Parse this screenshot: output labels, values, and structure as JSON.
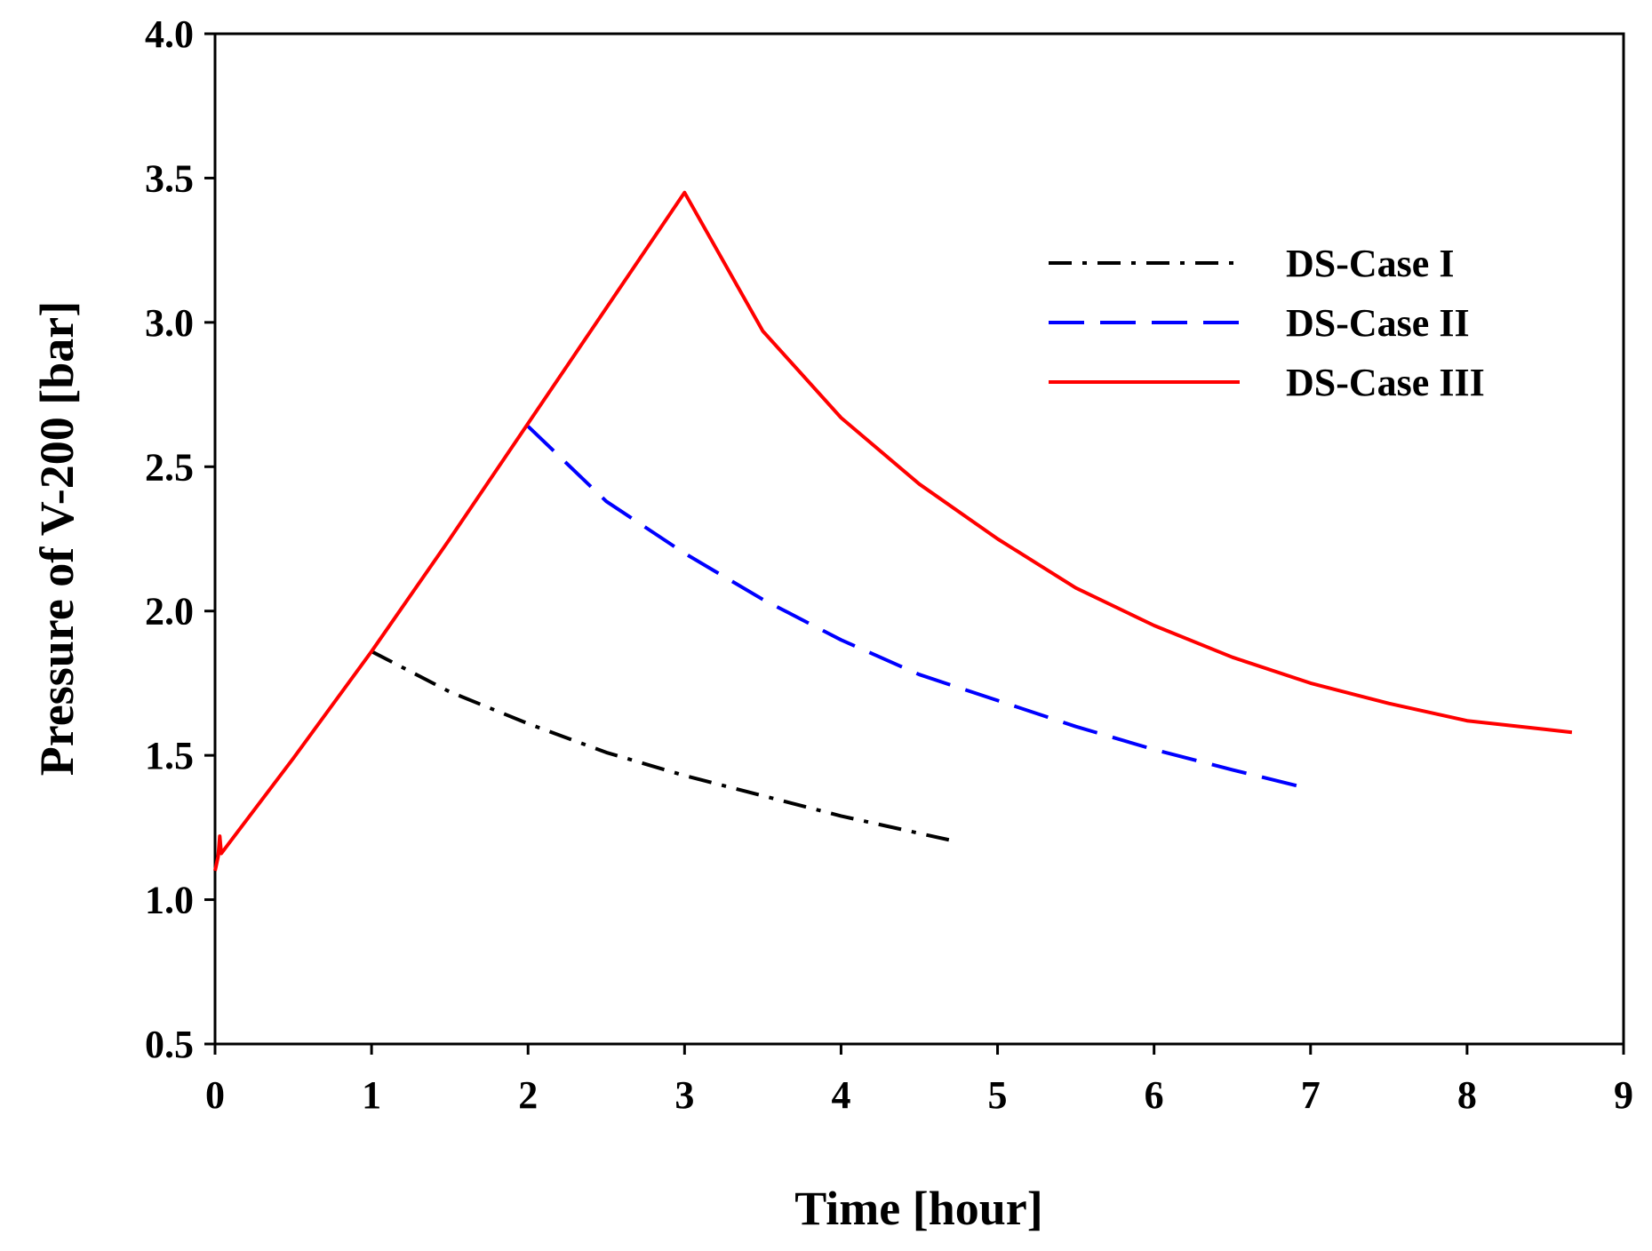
{
  "chart_data": {
    "type": "line",
    "title": "",
    "xlabel": "Time [hour]",
    "ylabel": "Pressure of V-200 [bar]",
    "xlim": [
      0,
      9
    ],
    "ylim": [
      0.5,
      4.0
    ],
    "xticks": [
      0,
      1,
      2,
      3,
      4,
      5,
      6,
      7,
      8,
      9
    ],
    "yticks": [
      0.5,
      1.0,
      1.5,
      2.0,
      2.5,
      3.0,
      3.5,
      4.0
    ],
    "xtick_labels": [
      "0",
      "1",
      "2",
      "3",
      "4",
      "5",
      "6",
      "7",
      "8",
      "9"
    ],
    "ytick_labels": [
      "0.5",
      "1.0",
      "1.5",
      "2.0",
      "2.5",
      "3.0",
      "3.5",
      "4.0"
    ],
    "grid": false,
    "legend_position": "top-right",
    "series": [
      {
        "name": "DS-Case I",
        "color": "#000000",
        "style": "dash-dot",
        "points": [
          [
            1.0,
            1.86
          ],
          [
            1.5,
            1.72
          ],
          [
            2.0,
            1.61
          ],
          [
            2.5,
            1.51
          ],
          [
            3.0,
            1.43
          ],
          [
            3.5,
            1.36
          ],
          [
            4.0,
            1.29
          ],
          [
            4.5,
            1.23
          ],
          [
            4.75,
            1.2
          ]
        ]
      },
      {
        "name": "DS-Case II",
        "color": "#0000ff",
        "style": "dashed",
        "points": [
          [
            2.0,
            2.64
          ],
          [
            2.5,
            2.38
          ],
          [
            3.0,
            2.2
          ],
          [
            3.5,
            2.04
          ],
          [
            4.0,
            1.9
          ],
          [
            4.5,
            1.78
          ],
          [
            5.0,
            1.69
          ],
          [
            5.5,
            1.6
          ],
          [
            6.0,
            1.52
          ],
          [
            6.5,
            1.45
          ],
          [
            6.95,
            1.39
          ]
        ]
      },
      {
        "name": "DS-Case III",
        "color": "#ff0000",
        "style": "solid",
        "points": [
          [
            0.0,
            1.1
          ],
          [
            0.02,
            1.15
          ],
          [
            0.03,
            1.22
          ],
          [
            0.04,
            1.16
          ],
          [
            0.5,
            1.49
          ],
          [
            1.0,
            1.86
          ],
          [
            1.5,
            2.25
          ],
          [
            2.0,
            2.65
          ],
          [
            2.5,
            3.05
          ],
          [
            3.0,
            3.45
          ],
          [
            3.5,
            2.97
          ],
          [
            4.0,
            2.67
          ],
          [
            4.5,
            2.44
          ],
          [
            5.0,
            2.25
          ],
          [
            5.5,
            2.08
          ],
          [
            6.0,
            1.95
          ],
          [
            6.5,
            1.84
          ],
          [
            7.0,
            1.75
          ],
          [
            7.5,
            1.68
          ],
          [
            8.0,
            1.62
          ],
          [
            8.5,
            1.59
          ],
          [
            8.67,
            1.58
          ]
        ]
      }
    ]
  }
}
